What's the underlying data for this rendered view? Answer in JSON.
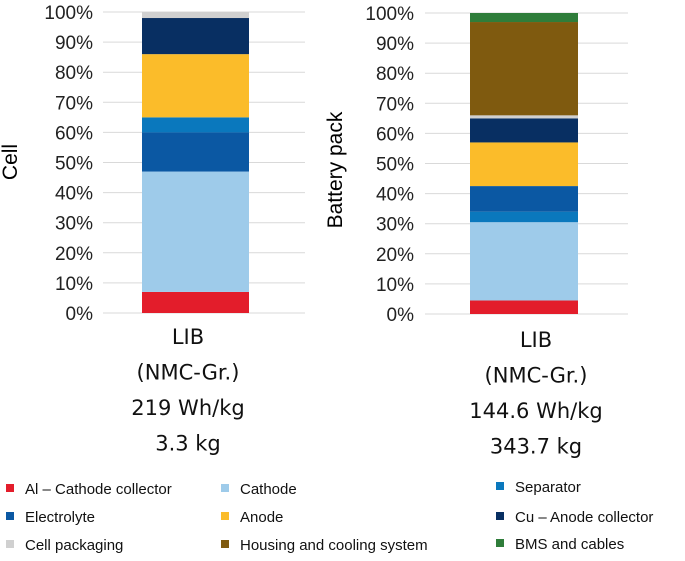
{
  "chart_data": [
    {
      "type": "bar",
      "stacked": true,
      "ylabel": "Cell",
      "ylim": [
        0,
        100
      ],
      "yticks": [
        "0%",
        "10%",
        "20%",
        "30%",
        "40%",
        "50%",
        "60%",
        "70%",
        "80%",
        "90%",
        "100%"
      ],
      "category_label": [
        "LIB",
        "(NMC-Gr.)",
        "219 Wh/kg",
        "3.3 kg"
      ],
      "series": [
        {
          "name": "Al – Cathode collector",
          "values": [
            7
          ]
        },
        {
          "name": "Cathode",
          "values": [
            40
          ]
        },
        {
          "name": "Electrolyte",
          "values": [
            13
          ]
        },
        {
          "name": "Separator",
          "values": [
            5
          ]
        },
        {
          "name": "Anode",
          "values": [
            21
          ]
        },
        {
          "name": "Cu – Anode collector",
          "values": [
            12
          ]
        },
        {
          "name": "Cell packaging",
          "values": [
            2
          ]
        }
      ]
    },
    {
      "type": "bar",
      "stacked": true,
      "ylabel": "Battery pack",
      "ylim": [
        0,
        100
      ],
      "yticks": [
        "0%",
        "10%",
        "20%",
        "30%",
        "40%",
        "50%",
        "60%",
        "70%",
        "80%",
        "90%",
        "100%"
      ],
      "category_label": [
        "LIB",
        "(NMC-Gr.)",
        "144.6 Wh/kg",
        "343.7 kg"
      ],
      "series": [
        {
          "name": "Al – Cathode collector",
          "values": [
            4.5
          ]
        },
        {
          "name": "Cathode",
          "values": [
            26
          ]
        },
        {
          "name": "Separator",
          "values": [
            3.5
          ]
        },
        {
          "name": "Electrolyte",
          "values": [
            8.5
          ]
        },
        {
          "name": "Anode",
          "values": [
            14.5
          ]
        },
        {
          "name": "Cu – Anode collector",
          "values": [
            8
          ]
        },
        {
          "name": "Cell packaging",
          "values": [
            1
          ]
        },
        {
          "name": "Housing and cooling system",
          "values": [
            31
          ]
        },
        {
          "name": "BMS and cables",
          "values": [
            3
          ]
        }
      ]
    }
  ],
  "legend": [
    {
      "label": "Al – Cathode collector",
      "color": "#e31d2b"
    },
    {
      "label": "Cathode",
      "color": "#9ecbea"
    },
    {
      "label": "Separator",
      "color": "#0a78bd"
    },
    {
      "label": "Electrolyte",
      "color": "#0b58a3"
    },
    {
      "label": "Anode",
      "color": "#fbbc2a"
    },
    {
      "label": "Cu – Anode collector",
      "color": "#082f62"
    },
    {
      "label": "Cell packaging",
      "color": "#d0d0d0"
    },
    {
      "label": "Housing and cooling system",
      "color": "#7f5a0f"
    },
    {
      "label": "BMS and cables",
      "color": "#2f7d3a"
    }
  ]
}
